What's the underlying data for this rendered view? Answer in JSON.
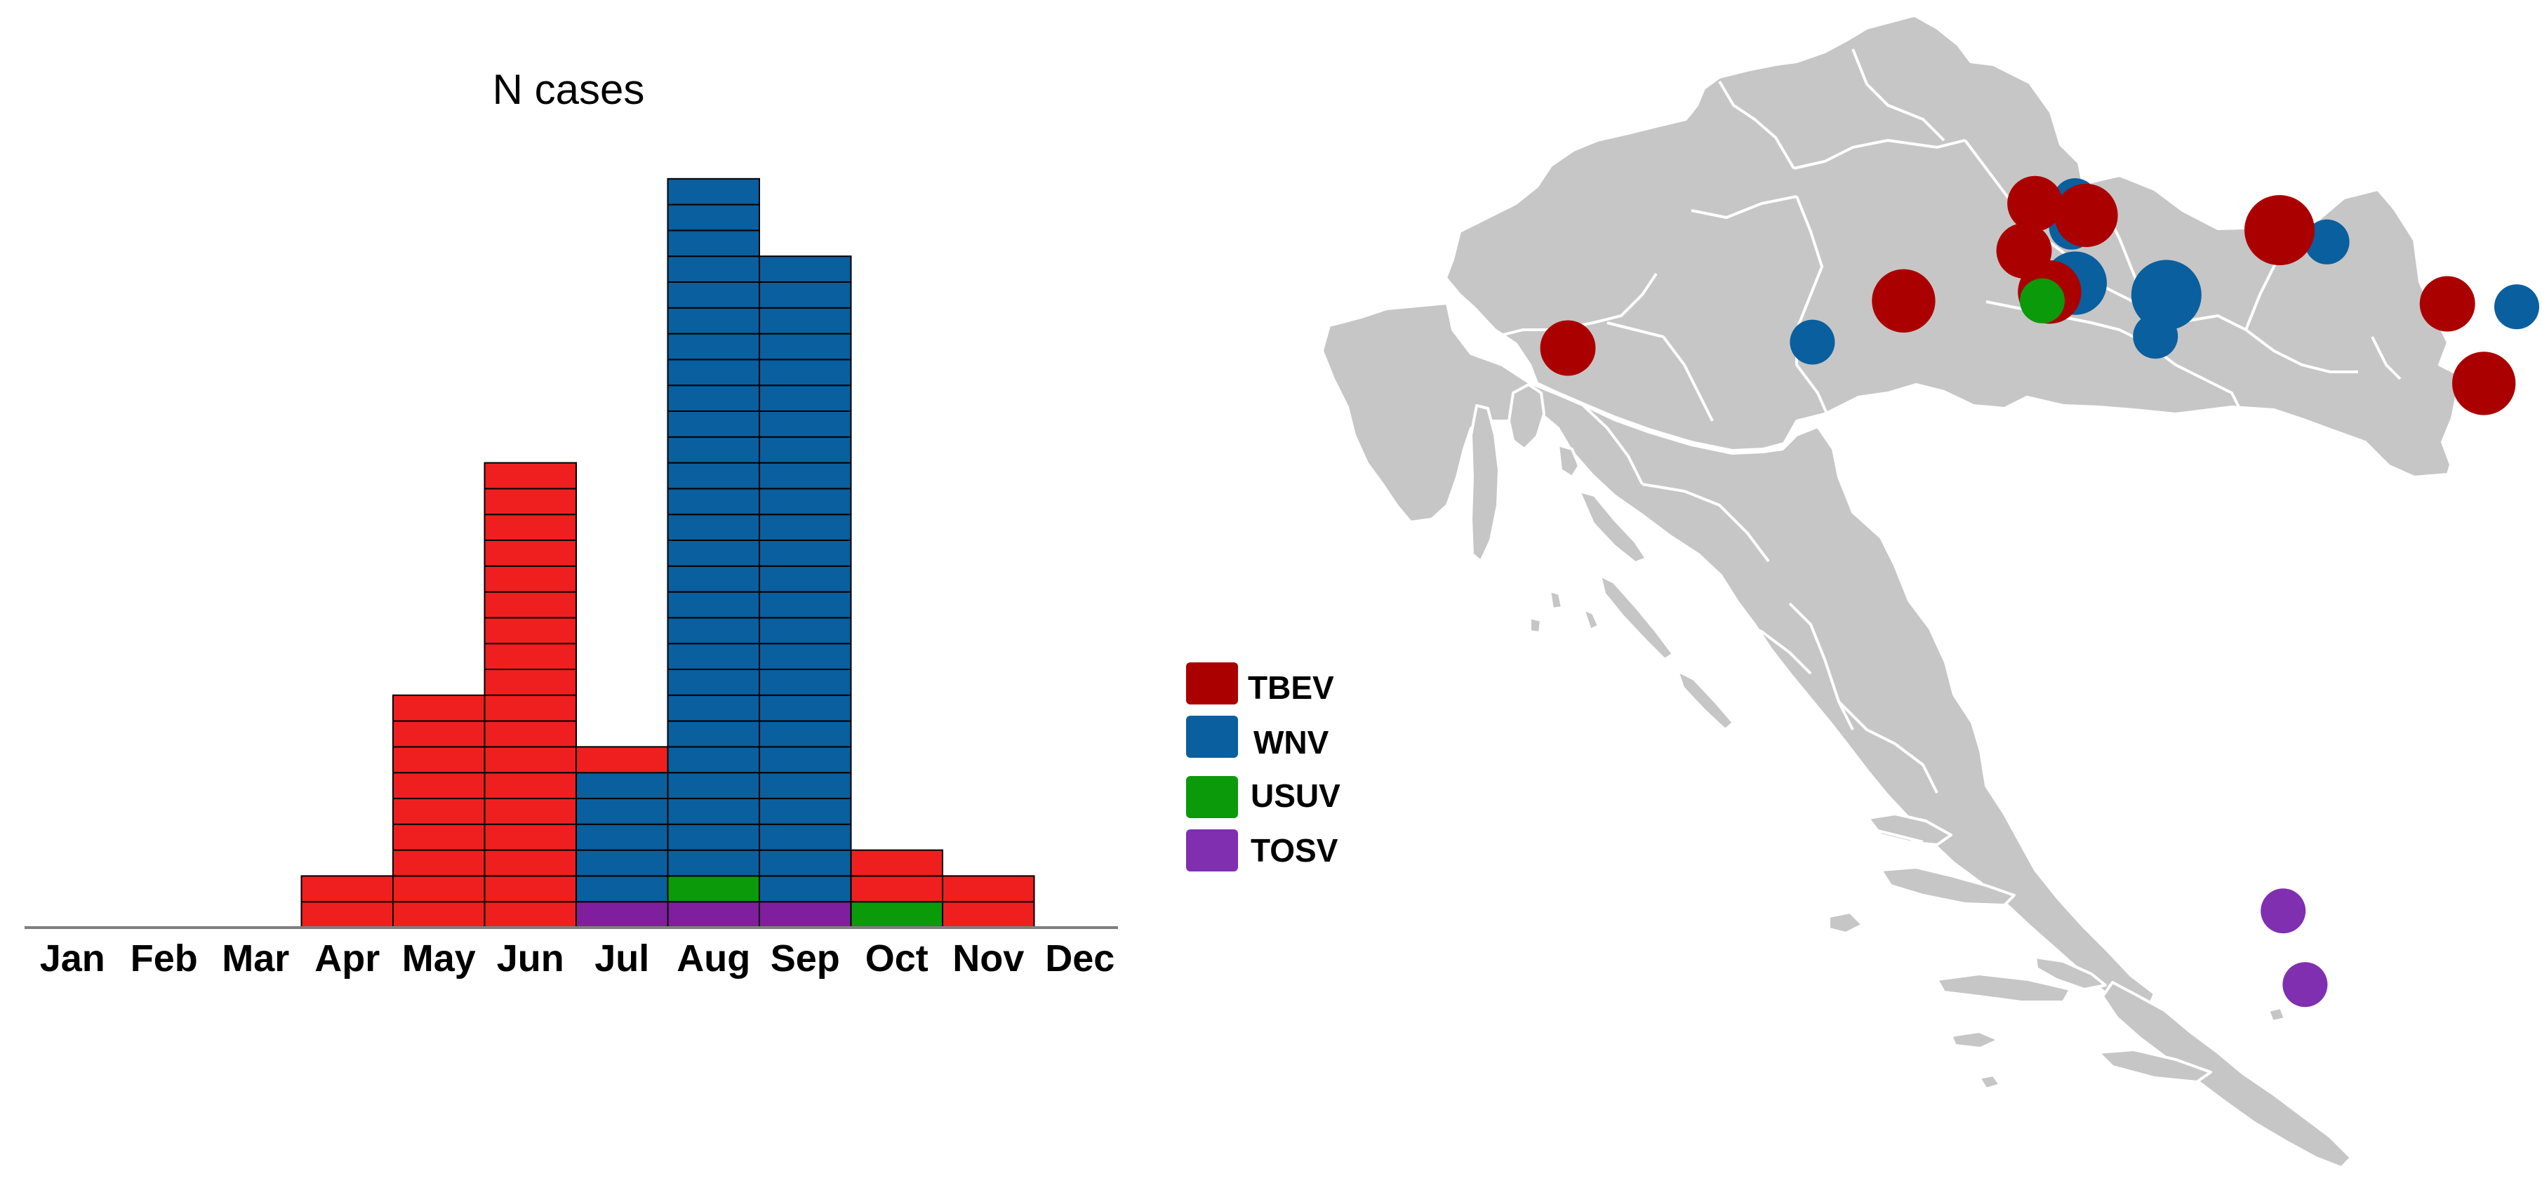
{
  "chart_data": [
    {
      "type": "bar",
      "stacked": true,
      "title": "N cases",
      "xlabel": "",
      "ylabel": "",
      "categories": [
        "Jan",
        "Feb",
        "Mar",
        "Apr",
        "May",
        "Jun",
        "Jul",
        "Aug",
        "Sep",
        "Oct",
        "Nov",
        "Dec"
      ],
      "series": [
        {
          "name": "TOSV",
          "color": "#7f1f9e",
          "values": [
            0,
            0,
            0,
            0,
            0,
            0,
            1,
            1,
            1,
            0,
            0,
            0
          ]
        },
        {
          "name": "USUV",
          "color": "#0a9a0a",
          "values": [
            0,
            0,
            0,
            0,
            0,
            0,
            0,
            1,
            0,
            1,
            0,
            0
          ]
        },
        {
          "name": "WNV",
          "color": "#0a5f9e",
          "values": [
            0,
            0,
            0,
            0,
            0,
            0,
            5,
            27,
            25,
            0,
            0,
            0
          ]
        },
        {
          "name": "TBEV",
          "color": "#ef1f1f",
          "values": [
            0,
            0,
            0,
            2,
            9,
            18,
            1,
            0,
            0,
            2,
            2,
            0
          ]
        }
      ],
      "ylim": [
        0,
        29
      ],
      "grid": false,
      "legend": "right"
    },
    {
      "type": "scatter",
      "kind": "bubble-map",
      "series": [
        {
          "name": "TBEV",
          "color": "#ab0000",
          "points": [
            {
              "x": 45.87,
              "y": 15.96,
              "size": 2
            },
            {
              "x": 45.83,
              "y": 16.1,
              "size": 3
            },
            {
              "x": 45.78,
              "y": 16.63,
              "size": 4
            },
            {
              "x": 45.71,
              "y": 15.93,
              "size": 2
            },
            {
              "x": 45.57,
              "y": 16.0,
              "size": 3
            },
            {
              "x": 45.54,
              "y": 15.6,
              "size": 3
            },
            {
              "x": 45.53,
              "y": 17.09,
              "size": 2
            },
            {
              "x": 45.45,
              "y": 18.4,
              "size": 4
            },
            {
              "x": 45.38,
              "y": 14.68,
              "size": 2
            },
            {
              "x": 45.26,
              "y": 17.19,
              "size": 3
            },
            {
              "x": 45.3,
              "y": 18.72,
              "size": 3
            }
          ]
        },
        {
          "name": "WNV",
          "color": "#0a5f9e",
          "points": [
            {
              "x": 45.88,
              "y": 16.07,
              "size": 1
            },
            {
              "x": 45.79,
              "y": 16.06,
              "size": 1
            },
            {
              "x": 45.74,
              "y": 16.76,
              "size": 1
            },
            {
              "x": 45.6,
              "y": 16.07,
              "size": 3
            },
            {
              "x": 45.56,
              "y": 16.32,
              "size": 4
            },
            {
              "x": 45.52,
              "y": 17.28,
              "size": 1
            },
            {
              "x": 45.48,
              "y": 18.38,
              "size": 6
            },
            {
              "x": 45.4,
              "y": 15.35,
              "size": 1
            },
            {
              "x": 45.42,
              "y": 16.29,
              "size": 1
            },
            {
              "x": 45.28,
              "y": 18.04,
              "size": 2
            },
            {
              "x": 45.31,
              "y": 18.8,
              "size": 1
            }
          ]
        },
        {
          "name": "USUV",
          "color": "#0a9a0a",
          "points": [
            {
              "x": 45.54,
              "y": 15.98,
              "size": 1
            },
            {
              "x": 45.4,
              "y": 17.67,
              "size": 1
            },
            {
              "x": 45.41,
              "y": 18.04,
              "size": 1
            }
          ]
        },
        {
          "name": "TOSV",
          "color": "#7f2fb0",
          "points": [
            {
              "x": 43.47,
              "y": 16.64,
              "size": 1
            },
            {
              "x": 43.22,
              "y": 16.7,
              "size": 1
            },
            {
              "x": 42.85,
              "y": 17.45,
              "size": 1
            }
          ]
        }
      ]
    }
  ],
  "legend": {
    "items": [
      {
        "label": "TBEV",
        "color": "#ab0000"
      },
      {
        "label": "WNV",
        "color": "#0a5f9e"
      },
      {
        "label": "USUV",
        "color": "#0a9a0a"
      },
      {
        "label": "TOSV",
        "color": "#7f2fb0"
      }
    ]
  },
  "map": {
    "land_color": "#c6c6c6",
    "border_color": "#ffffff"
  }
}
